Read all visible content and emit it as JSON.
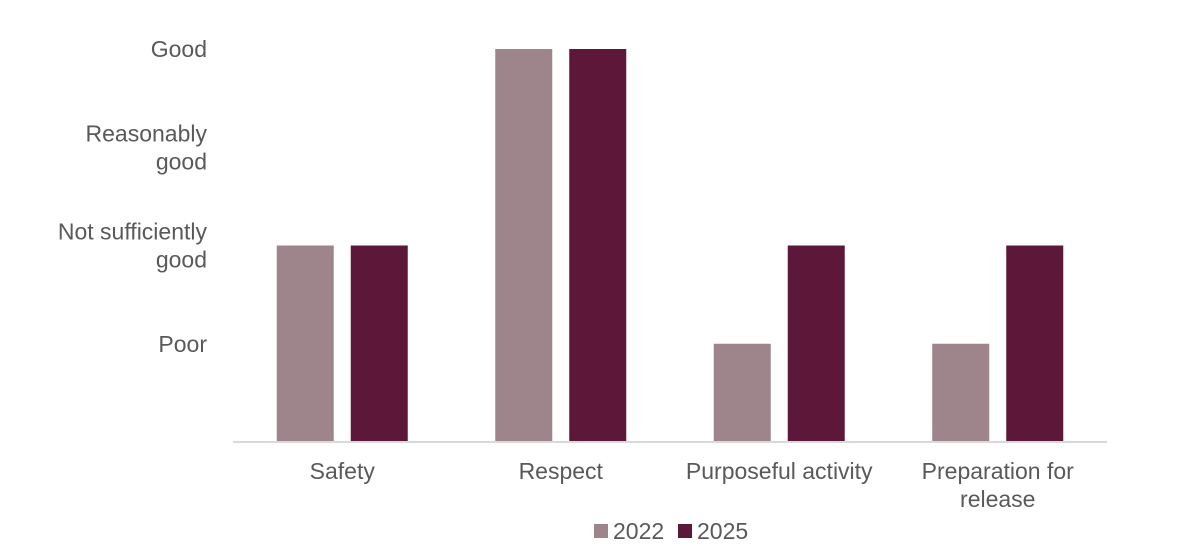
{
  "chart_data": {
    "type": "bar",
    "categories": [
      [
        "Safety"
      ],
      [
        "Respect"
      ],
      [
        "Purposeful activity"
      ],
      [
        "Preparation for",
        "release"
      ]
    ],
    "y_levels": [
      [
        "Poor"
      ],
      [
        "Not sufficiently",
        "good"
      ],
      [
        "Reasonably",
        "good"
      ],
      [
        "Good"
      ]
    ],
    "ylim": [
      0,
      4
    ],
    "series": [
      {
        "name": "2022",
        "color": "#9e848b",
        "values": [
          2,
          4,
          1,
          1
        ]
      },
      {
        "name": "2025",
        "color": "#5c1739",
        "values": [
          2,
          4,
          2,
          2
        ]
      }
    ],
    "legend_position": "bottom",
    "grid": false
  }
}
